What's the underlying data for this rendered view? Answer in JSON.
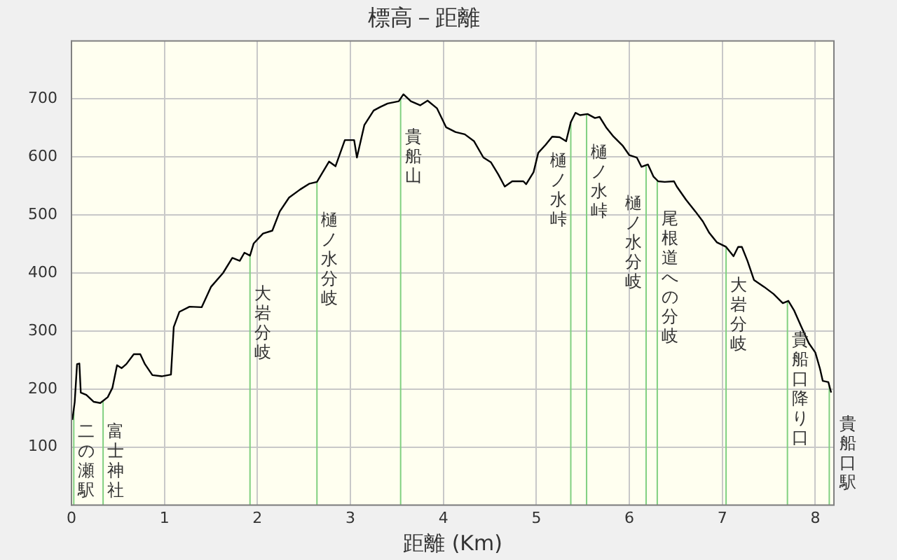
{
  "chart_data": {
    "type": "line",
    "title": "標高－距離",
    "xlabel": "距離 (Km)",
    "series": [
      {
        "color": "#000000",
        "x": [
          0.01,
          0.035,
          0.06,
          0.085,
          0.1,
          0.16,
          0.24,
          0.31,
          0.39,
          0.44,
          0.49,
          0.54,
          0.59,
          0.67,
          0.74,
          0.79,
          0.87,
          0.97,
          1.07,
          1.1,
          1.16,
          1.27,
          1.4,
          1.5,
          1.63,
          1.73,
          1.81,
          1.86,
          1.92,
          1.96,
          2.06,
          2.16,
          2.24,
          2.34,
          2.46,
          2.56,
          2.64,
          2.77,
          2.84,
          2.94,
          3.04,
          3.07,
          3.15,
          3.25,
          3.32,
          3.4,
          3.52,
          3.57,
          3.65,
          3.75,
          3.83,
          3.93,
          4.03,
          4.13,
          4.23,
          4.33,
          4.43,
          4.51,
          4.59,
          4.66,
          4.74,
          4.86,
          4.89,
          4.97,
          5.02,
          5.1,
          5.17,
          5.25,
          5.32,
          5.37,
          5.42,
          5.47,
          5.55,
          5.63,
          5.68,
          5.75,
          5.83,
          5.93,
          6.0,
          6.08,
          6.13,
          6.2,
          6.26,
          6.31,
          6.38,
          6.48,
          6.51,
          6.61,
          6.71,
          6.79,
          6.86,
          6.94,
          7.04,
          7.12,
          7.17,
          7.21,
          7.27,
          7.34,
          7.45,
          7.55,
          7.65,
          7.71,
          7.77,
          7.85,
          7.93,
          8.0,
          8.05,
          8.08,
          8.14,
          8.17
        ],
        "values": [
          147,
          178,
          243,
          244,
          194,
          190,
          178,
          176,
          186,
          202,
          241,
          236,
          243,
          260,
          260,
          243,
          224,
          222,
          225,
          307,
          333,
          342,
          341,
          376,
          400,
          426,
          421,
          435,
          430,
          451,
          468,
          473,
          506,
          530,
          544,
          554,
          557,
          592,
          584,
          629,
          629,
          599,
          655,
          680,
          686,
          692,
          696,
          708,
          696,
          689,
          697,
          684,
          651,
          643,
          639,
          627,
          599,
          591,
          570,
          549,
          558,
          558,
          553,
          574,
          607,
          621,
          635,
          634,
          627,
          660,
          676,
          672,
          674,
          667,
          669,
          651,
          635,
          619,
          603,
          599,
          583,
          587,
          566,
          558,
          557,
          558,
          549,
          526,
          506,
          489,
          469,
          453,
          445,
          429,
          445,
          445,
          421,
          388,
          376,
          364,
          348,
          352,
          336,
          307,
          279,
          263,
          235,
          214,
          212,
          194
        ]
      }
    ],
    "xlim": [
      0,
      8.2
    ],
    "xticks": [
      0,
      1,
      2,
      3,
      4,
      5,
      6,
      7,
      8
    ],
    "ylim": [
      0,
      800
    ],
    "yticks": [
      100,
      200,
      300,
      400,
      500,
      600,
      700
    ],
    "grid": true,
    "legend": false,
    "marker": "none",
    "line_style": "solid",
    "ref_lines": [
      {
        "axis": "x",
        "value": 0.025,
        "label": "二の瀬駅",
        "color": "#80d080"
      },
      {
        "axis": "x",
        "value": 0.34,
        "label": "富士神社",
        "color": "#80d080"
      },
      {
        "axis": "x",
        "value": 1.92,
        "label": "大岩分岐",
        "color": "#80d080"
      },
      {
        "axis": "x",
        "value": 2.64,
        "label": "樋ノ水分岐",
        "color": "#80d080"
      },
      {
        "axis": "x",
        "value": 3.54,
        "label": "貴船山",
        "color": "#80d080"
      },
      {
        "axis": "x",
        "value": 5.37,
        "label": "樋ノ水峠",
        "color": "#80d080"
      },
      {
        "axis": "x",
        "value": 5.54,
        "label": "樋ノ水峠",
        "color": "#80d080"
      },
      {
        "axis": "x",
        "value": 6.18,
        "label": "樋ノ水分岐",
        "color": "#80d080"
      },
      {
        "axis": "x",
        "value": 6.3,
        "label": "尾根道への分岐",
        "color": "#80d080"
      },
      {
        "axis": "x",
        "value": 7.04,
        "label": "大岩分岐",
        "color": "#80d080"
      },
      {
        "axis": "x",
        "value": 7.7,
        "label": "貴船口降り口",
        "color": "#80d080"
      },
      {
        "axis": "x",
        "value": 8.15,
        "label": "貴船口駅",
        "color": "#80d080"
      }
    ]
  }
}
